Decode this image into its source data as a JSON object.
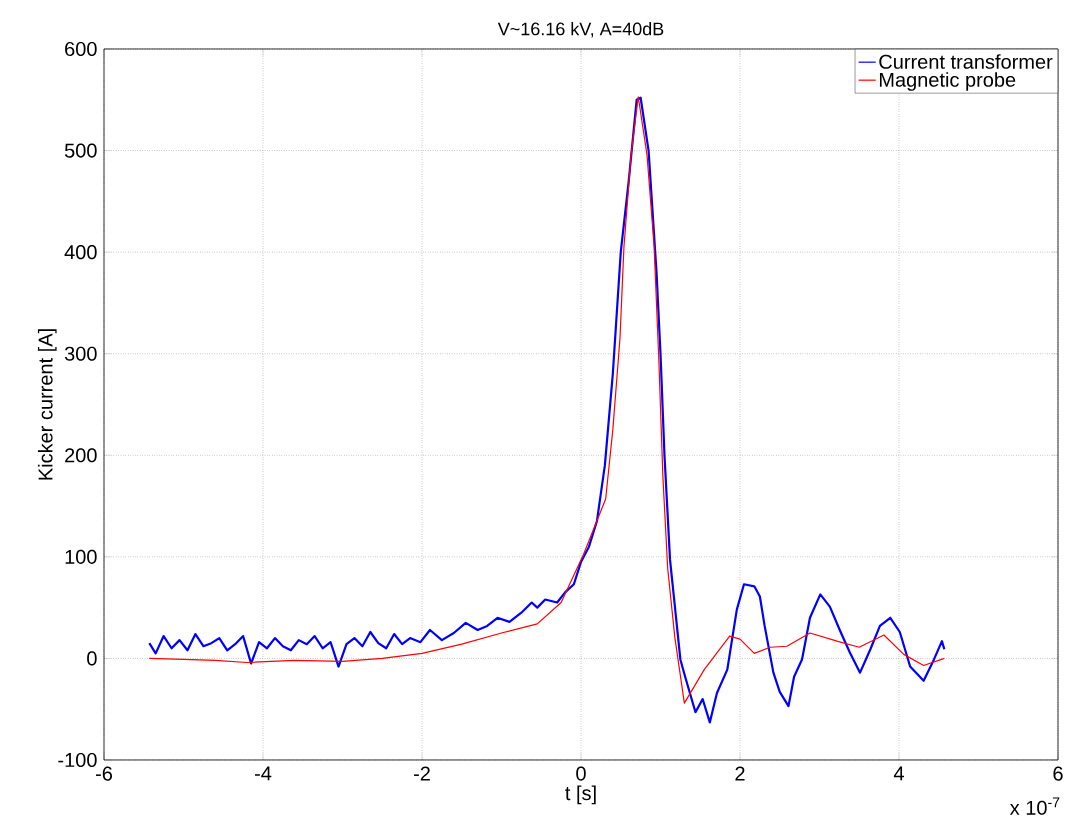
{
  "chart_data": {
    "type": "line",
    "title": "V~16.16 kV, A=40dB",
    "xlabel": "t [s]",
    "ylabel": "Kicker current [A]",
    "annotations": [
      "x 10$^{-7}$"
    ],
    "xlim": [
      -6,
      6
    ],
    "ylim": [
      -100,
      600
    ],
    "xticks": [
      -6,
      -4,
      -2,
      0,
      2,
      4,
      6
    ],
    "yticks": [
      -100,
      0,
      100,
      200,
      300,
      400,
      500,
      600
    ],
    "grid": true,
    "legend": "top right",
    "marker": "none",
    "line_style": "solid",
    "series": [
      {
        "name": "Current transformer",
        "color": "#0000ff",
        "x": [
          -5.43,
          -5.35,
          -5.25,
          -5.15,
          -5.05,
          -4.95,
          -4.85,
          -4.75,
          -4.65,
          -4.55,
          -4.45,
          -4.35,
          -4.25,
          -4.15,
          -4.05,
          -3.95,
          -3.85,
          -3.75,
          -3.65,
          -3.55,
          -3.45,
          -3.35,
          -3.25,
          -3.15,
          -3.05,
          -2.95,
          -2.85,
          -2.75,
          -2.65,
          -2.55,
          -2.45,
          -2.35,
          -2.25,
          -2.15,
          -2.02,
          -1.9,
          -1.75,
          -1.6,
          -1.45,
          -1.3,
          -1.18,
          -1.05,
          -0.9,
          -0.75,
          -0.62,
          -0.55,
          -0.45,
          -0.3,
          -0.2,
          -0.09,
          0.0,
          0.1,
          0.2,
          0.3,
          0.4,
          0.5,
          0.6,
          0.7,
          0.75,
          0.85,
          0.95,
          1.0,
          1.05,
          1.12,
          1.25,
          1.31,
          1.44,
          1.53,
          1.62,
          1.71,
          1.84,
          1.96,
          2.05,
          2.18,
          2.25,
          2.31,
          2.42,
          2.5,
          2.61,
          2.68,
          2.78,
          2.88,
          3.01,
          3.13,
          3.26,
          3.38,
          3.51,
          3.64,
          3.76,
          3.89,
          4.01,
          4.14,
          4.31,
          4.44,
          4.54,
          4.57
        ],
        "values": [
          15,
          5,
          22,
          10,
          18,
          8,
          24,
          12,
          15,
          20,
          8,
          14,
          22,
          -5,
          16,
          10,
          20,
          12,
          8,
          18,
          14,
          22,
          10,
          16,
          -8,
          14,
          20,
          12,
          26,
          15,
          10,
          24,
          14,
          20,
          16,
          28,
          18,
          25,
          35,
          28,
          32,
          40,
          36,
          45,
          55,
          50,
          58,
          55,
          65,
          73,
          95,
          110,
          135,
          190,
          280,
          400,
          470,
          550,
          552,
          500,
          380,
          300,
          200,
          97,
          -1,
          -18,
          -53,
          -40,
          -63,
          -34,
          -11,
          48,
          73,
          71,
          61,
          32,
          -14,
          -33,
          -47,
          -18,
          -1,
          40,
          63,
          51,
          27,
          6,
          -14,
          9,
          32,
          40,
          26,
          -8,
          -22,
          -1,
          17,
          9
        ]
      },
      {
        "name": "Magnetic probe",
        "color": "#ff0000",
        "x": [
          -5.43,
          -5.0,
          -4.6,
          -4.2,
          -3.6,
          -3.0,
          -2.5,
          -2.0,
          -1.5,
          -1.0,
          -0.55,
          -0.25,
          0.03,
          0.31,
          0.4,
          0.49,
          0.54,
          0.63,
          0.72,
          0.83,
          0.92,
          0.98,
          1.03,
          1.09,
          1.18,
          1.3,
          1.55,
          1.87,
          2.0,
          2.18,
          2.38,
          2.59,
          2.88,
          3.22,
          3.5,
          3.81,
          4.06,
          4.31,
          4.57
        ],
        "values": [
          0,
          -1,
          -2,
          -4,
          -2,
          -3,
          0,
          5,
          14,
          25,
          34,
          55,
          102,
          157,
          225,
          315,
          405,
          496,
          553,
          496,
          405,
          292,
          179,
          89,
          21,
          -44,
          -11,
          22,
          19,
          5,
          11,
          12,
          25,
          17,
          11,
          23,
          4,
          -7,
          0
        ]
      }
    ]
  }
}
